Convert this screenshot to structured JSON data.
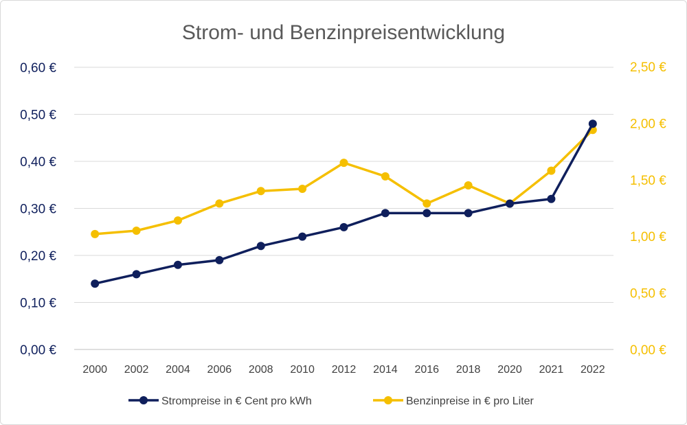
{
  "chart_data": {
    "type": "line",
    "title": "Strom- und Benzinpreisentwicklung",
    "categories": [
      "2000",
      "2002",
      "2004",
      "2006",
      "2008",
      "2010",
      "2012",
      "2014",
      "2016",
      "2018",
      "2020",
      "2021",
      "2022"
    ],
    "y_left": {
      "range": [
        0,
        0.6
      ],
      "ticks": [
        0,
        0.1,
        0.2,
        0.3,
        0.4,
        0.5,
        0.6
      ],
      "tick_labels": [
        "0,00 €",
        "0,10 €",
        "0,20 €",
        "0,30 €",
        "0,40 €",
        "0,50 €",
        "0,60 €"
      ],
      "color": "#0f1f5c"
    },
    "y_right": {
      "range": [
        0,
        2.5
      ],
      "ticks": [
        0,
        0.5,
        1.0,
        1.5,
        2.0,
        2.5
      ],
      "tick_labels": [
        "0,00 €",
        "0,50 €",
        "1,00 €",
        "1,50 €",
        "2,00 €",
        "2,50 €"
      ],
      "color": "#f5bf00"
    },
    "grid": true,
    "legend_position": "bottom",
    "series": [
      {
        "name": "Strompreise in € Cent pro kWh",
        "axis": "left",
        "color": "#0f1f5c",
        "values": [
          0.14,
          0.16,
          0.18,
          0.19,
          0.22,
          0.24,
          0.26,
          0.29,
          0.29,
          0.29,
          0.31,
          0.32,
          0.48
        ]
      },
      {
        "name": "Benzinpreise in € pro Liter",
        "axis": "right",
        "color": "#f5bf00",
        "values": [
          1.02,
          1.05,
          1.14,
          1.29,
          1.4,
          1.42,
          1.65,
          1.53,
          1.29,
          1.45,
          1.29,
          1.58,
          1.94
        ]
      }
    ]
  }
}
